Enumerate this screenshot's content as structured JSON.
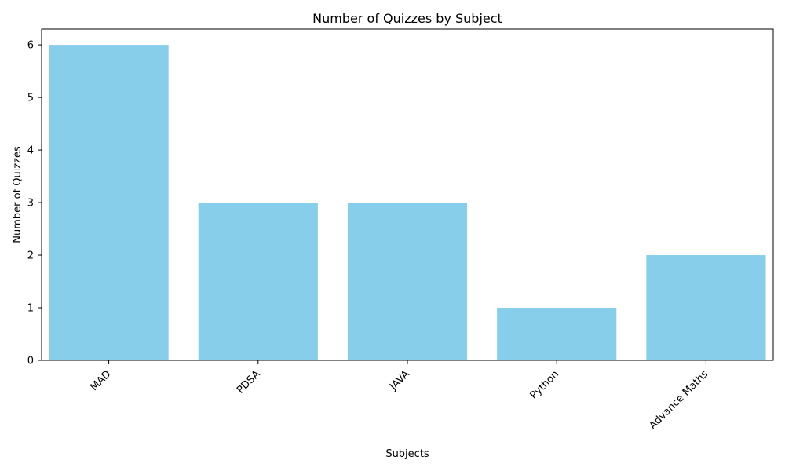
{
  "chart_data": {
    "type": "bar",
    "title": "Number of Quizzes by Subject",
    "xlabel": "Subjects",
    "ylabel": "Number of Quizzes",
    "categories": [
      "MAD",
      "PDSA",
      "JAVA",
      "Python",
      "Advance Maths"
    ],
    "values": [
      6,
      3,
      3,
      1,
      2
    ],
    "ylim": [
      0,
      6.3
    ],
    "yticks": [
      0,
      1,
      2,
      3,
      4,
      5,
      6
    ],
    "grid": false,
    "legend": "none",
    "bar_color": "#87CEEB",
    "xtick_rotation": -45
  }
}
